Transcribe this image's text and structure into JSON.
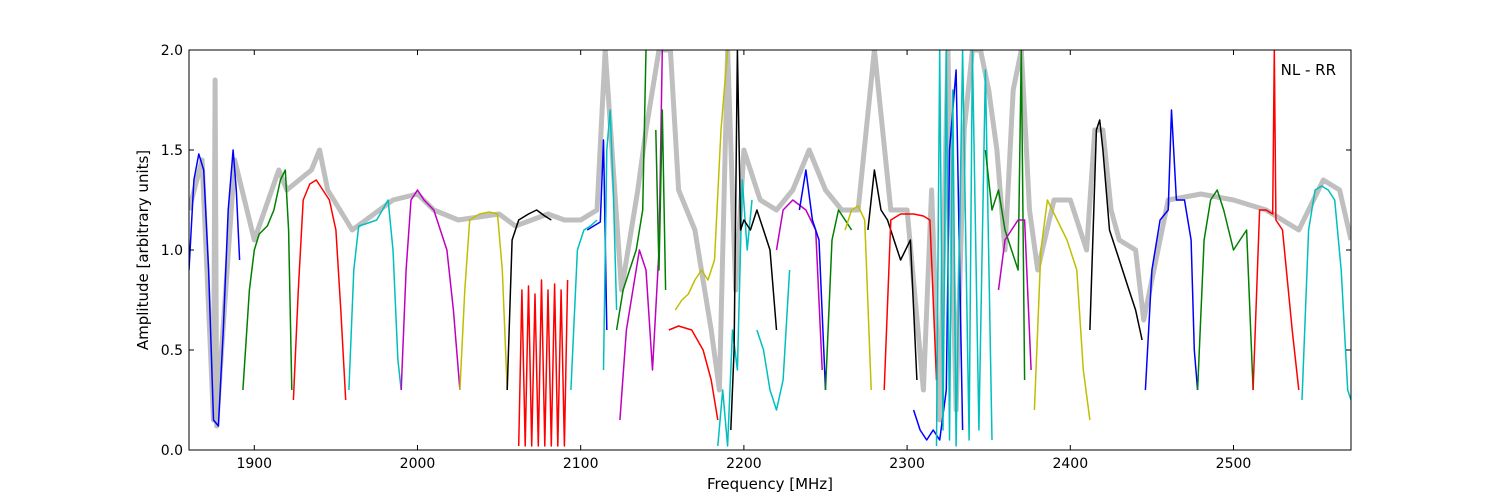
{
  "chart_data": {
    "type": "line",
    "title": "",
    "xlabel": "Frequency [MHz]",
    "ylabel": "Amplitude [arbitrary units]",
    "xlim": [
      1860,
      2572
    ],
    "ylim": [
      0.0,
      2.0
    ],
    "xticks": [
      "1900",
      "2000",
      "2100",
      "2200",
      "2300",
      "2400",
      "2500"
    ],
    "yticks": [
      "0.0",
      "0.5",
      "1.0",
      "1.5",
      "2.0"
    ],
    "annotation": "NL - RR",
    "grid": false,
    "legend": "none",
    "background_series": {
      "color": "#bfbfbf",
      "x": [
        1860,
        1868,
        1875,
        1876,
        1877,
        1880,
        1888,
        1900,
        1915,
        1920,
        1935,
        1940,
        1945,
        1960,
        1985,
        2000,
        2010,
        2025,
        2050,
        2060,
        2070,
        2080,
        2090,
        2100,
        2110,
        2115,
        2125,
        2135,
        2140,
        2148,
        2155,
        2160,
        2170,
        2180,
        2185,
        2190,
        2195,
        2200,
        2210,
        2220,
        2230,
        2240,
        2250,
        2260,
        2270,
        2280,
        2290,
        2300,
        2310,
        2315,
        2320,
        2325,
        2330,
        2335,
        2340,
        2345,
        2350,
        2355,
        2360,
        2365,
        2370,
        2375,
        2380,
        2390,
        2400,
        2410,
        2415,
        2420,
        2425,
        2430,
        2440,
        2445,
        2460,
        2480,
        2500,
        2520,
        2540,
        2555,
        2565,
        2572
      ],
      "y": [
        1.2,
        1.45,
        0.15,
        1.85,
        0.12,
        0.5,
        1.45,
        1.05,
        1.4,
        1.3,
        1.4,
        1.5,
        1.3,
        1.1,
        1.25,
        1.28,
        1.2,
        1.15,
        1.18,
        1.12,
        1.15,
        1.18,
        1.15,
        1.15,
        1.2,
        2.0,
        0.8,
        1.3,
        1.6,
        2.0,
        2.0,
        1.3,
        1.1,
        0.6,
        0.3,
        2.0,
        0.8,
        1.5,
        1.25,
        1.2,
        1.3,
        1.5,
        1.3,
        1.2,
        1.2,
        2.0,
        1.2,
        1.2,
        0.3,
        1.3,
        0.15,
        2.0,
        0.2,
        1.6,
        2.0,
        2.0,
        1.8,
        1.5,
        1.0,
        1.8,
        2.0,
        1.2,
        0.9,
        1.25,
        1.25,
        1.0,
        1.6,
        1.6,
        1.2,
        1.05,
        1.0,
        0.65,
        1.25,
        1.28,
        1.25,
        1.2,
        1.1,
        1.35,
        1.3,
        1.05
      ]
    },
    "series": [
      {
        "color": "#0000ff",
        "x": [
          1860,
          1863,
          1866,
          1869,
          1872,
          1875,
          1878,
          1881,
          1884,
          1887,
          1889,
          1891
        ],
        "y": [
          0.9,
          1.35,
          1.48,
          1.4,
          0.9,
          0.15,
          0.12,
          0.6,
          1.2,
          1.5,
          1.3,
          0.95
        ]
      },
      {
        "color": "#008000",
        "x": [
          1893,
          1897,
          1900,
          1903,
          1908,
          1912,
          1916,
          1919,
          1921,
          1923
        ],
        "y": [
          0.3,
          0.8,
          1.0,
          1.08,
          1.12,
          1.2,
          1.35,
          1.4,
          1.1,
          0.3
        ]
      },
      {
        "color": "#ff0000",
        "x": [
          1924,
          1927,
          1930,
          1934,
          1938,
          1942,
          1946,
          1950,
          1953,
          1956
        ],
        "y": [
          0.25,
          0.8,
          1.25,
          1.33,
          1.35,
          1.3,
          1.25,
          1.1,
          0.7,
          0.25
        ]
      },
      {
        "color": "#00bfbf",
        "x": [
          1958,
          1961,
          1964,
          1968,
          1975,
          1982,
          1985,
          1988,
          1990
        ],
        "y": [
          0.3,
          0.9,
          1.12,
          1.13,
          1.15,
          1.25,
          1.0,
          0.45,
          0.3
        ]
      },
      {
        "color": "#bf00bf",
        "x": [
          1990,
          1993,
          1996,
          2000,
          2004,
          2010,
          2018,
          2022,
          2026
        ],
        "y": [
          0.3,
          0.9,
          1.25,
          1.3,
          1.25,
          1.2,
          1.0,
          0.7,
          0.3
        ]
      },
      {
        "color": "#bfbf00",
        "x": [
          2026,
          2029,
          2032,
          2038,
          2044,
          2049,
          2052,
          2055
        ],
        "y": [
          0.3,
          0.8,
          1.15,
          1.18,
          1.19,
          1.18,
          0.9,
          0.3
        ]
      },
      {
        "color": "#000000",
        "x": [
          2055,
          2058,
          2062,
          2068,
          2073,
          2078,
          2082
        ],
        "y": [
          0.3,
          1.05,
          1.15,
          1.18,
          1.2,
          1.17,
          1.15
        ]
      },
      {
        "color": "#ff0000",
        "x": [
          2062,
          2064,
          2066,
          2068,
          2070,
          2072,
          2074,
          2076,
          2078,
          2080,
          2082,
          2084,
          2086,
          2088,
          2090,
          2092
        ],
        "y": [
          0.02,
          0.8,
          0.02,
          0.82,
          0.02,
          0.78,
          0.02,
          0.85,
          0.02,
          0.8,
          0.02,
          0.83,
          0.02,
          0.8,
          0.02,
          0.85
        ]
      },
      {
        "color": "#00bfbf",
        "x": [
          2094,
          2098,
          2102,
          2106,
          2110
        ],
        "y": [
          0.3,
          1.0,
          1.1,
          1.12,
          1.15
        ]
      },
      {
        "color": "#0000ff",
        "x": [
          2104,
          2108,
          2112,
          2114,
          2116
        ],
        "y": [
          1.1,
          1.12,
          1.14,
          1.55,
          0.6
        ]
      },
      {
        "color": "#00bfbf",
        "x": [
          2114,
          2116,
          2118,
          2120,
          2122
        ],
        "y": [
          0.4,
          1.5,
          1.7,
          1.3,
          0.7
        ]
      },
      {
        "color": "#008000",
        "x": [
          2122,
          2126,
          2130,
          2134,
          2138,
          2140
        ],
        "y": [
          0.6,
          0.8,
          0.9,
          1.0,
          1.2,
          2.0
        ]
      },
      {
        "color": "#bf00bf",
        "x": [
          2124,
          2128,
          2132,
          2136,
          2140,
          2144,
          2148,
          2150
        ],
        "y": [
          0.15,
          0.6,
          0.8,
          1.0,
          0.9,
          0.4,
          1.0,
          2.0
        ]
      },
      {
        "color": "#008000",
        "x": [
          2146,
          2148,
          2150,
          2152
        ],
        "y": [
          1.6,
          0.9,
          1.7,
          0.8
        ]
      },
      {
        "color": "#ff0000",
        "x": [
          2154,
          2160,
          2168,
          2175,
          2180,
          2184
        ],
        "y": [
          0.6,
          0.62,
          0.6,
          0.5,
          0.35,
          0.15
        ]
      },
      {
        "color": "#bfbf00",
        "x": [
          2158,
          2162,
          2166,
          2170,
          2174,
          2178,
          2182,
          2186,
          2190
        ],
        "y": [
          0.7,
          0.75,
          0.78,
          0.85,
          0.9,
          0.85,
          0.95,
          1.6,
          2.0
        ]
      },
      {
        "color": "#00bfbf",
        "x": [
          2184,
          2187,
          2190,
          2193,
          2196,
          2199,
          2202,
          2205
        ],
        "y": [
          0.02,
          0.3,
          0.02,
          0.6,
          0.4,
          1.35,
          1.0,
          1.25
        ]
      },
      {
        "color": "#000000",
        "x": [
          2192,
          2194,
          2196,
          2198,
          2200,
          2204,
          2208,
          2212,
          2216,
          2220
        ],
        "y": [
          0.1,
          0.5,
          2.0,
          1.1,
          1.15,
          1.1,
          1.2,
          1.1,
          1.0,
          0.6
        ]
      },
      {
        "color": "#00bfbf",
        "x": [
          2208,
          2212,
          2216,
          2220,
          2224,
          2228
        ],
        "y": [
          0.6,
          0.5,
          0.3,
          0.2,
          0.35,
          0.9
        ]
      },
      {
        "color": "#bf00bf",
        "x": [
          2220,
          2224,
          2230,
          2238,
          2244,
          2248
        ],
        "y": [
          1.0,
          1.2,
          1.25,
          1.2,
          1.1,
          0.4
        ]
      },
      {
        "color": "#0000ff",
        "x": [
          2234,
          2238,
          2242,
          2246,
          2250
        ],
        "y": [
          1.2,
          1.4,
          1.15,
          1.05,
          0.3
        ]
      },
      {
        "color": "#008000",
        "x": [
          2250,
          2254,
          2258,
          2262,
          2266
        ],
        "y": [
          0.3,
          1.05,
          1.2,
          1.15,
          1.1
        ]
      },
      {
        "color": "#bfbf00",
        "x": [
          2262,
          2266,
          2270,
          2274,
          2278
        ],
        "y": [
          1.1,
          1.2,
          1.22,
          1.15,
          0.3
        ]
      },
      {
        "color": "#000000",
        "x": [
          2276,
          2280,
          2284,
          2288,
          2292,
          2296,
          2302,
          2306
        ],
        "y": [
          1.1,
          1.4,
          1.2,
          1.15,
          1.05,
          0.95,
          1.05,
          0.35
        ]
      },
      {
        "color": "#ff0000",
        "x": [
          2286,
          2290,
          2296,
          2304,
          2310,
          2314,
          2318
        ],
        "y": [
          0.3,
          1.15,
          1.18,
          1.18,
          1.17,
          1.15,
          0.35
        ]
      },
      {
        "color": "#0000ff",
        "x": [
          2304,
          2308,
          2312,
          2316,
          2320,
          2324,
          2326,
          2330,
          2334
        ],
        "y": [
          0.2,
          0.1,
          0.05,
          0.1,
          0.05,
          0.3,
          1.5,
          1.9,
          0.1
        ]
      },
      {
        "color": "#00bfbf",
        "x": [
          2318,
          2320,
          2322,
          2324,
          2326,
          2328,
          2330,
          2334,
          2338,
          2340,
          2344,
          2348,
          2352
        ],
        "y": [
          0.02,
          2.0,
          0.1,
          2.0,
          0.05,
          1.8,
          0.02,
          2.0,
          0.05,
          2.0,
          0.1,
          1.9,
          0.05
        ]
      },
      {
        "color": "#008000",
        "x": [
          2348,
          2352,
          2356,
          2360,
          2364,
          2368,
          2370,
          2372
        ],
        "y": [
          1.5,
          1.2,
          1.3,
          1.1,
          1.0,
          0.9,
          2.0,
          0.35
        ]
      },
      {
        "color": "#bf00bf",
        "x": [
          2356,
          2360,
          2364,
          2368,
          2372,
          2376
        ],
        "y": [
          0.8,
          1.05,
          1.1,
          1.15,
          1.15,
          0.4
        ]
      },
      {
        "color": "#bfbf00",
        "x": [
          2378,
          2382,
          2386,
          2392,
          2398,
          2404,
          2408,
          2412
        ],
        "y": [
          0.2,
          1.0,
          1.25,
          1.15,
          1.05,
          0.9,
          0.4,
          0.15
        ]
      },
      {
        "color": "#000000",
        "x": [
          2412,
          2416,
          2418,
          2420,
          2424,
          2430,
          2436,
          2440,
          2444
        ],
        "y": [
          0.6,
          1.6,
          1.65,
          1.5,
          1.1,
          0.95,
          0.8,
          0.7,
          0.55
        ]
      },
      {
        "color": "#0000ff",
        "x": [
          2446,
          2450,
          2455,
          2460,
          2462,
          2465,
          2470,
          2474,
          2476,
          2478
        ],
        "y": [
          0.3,
          0.9,
          1.15,
          1.2,
          1.7,
          1.25,
          1.25,
          1.05,
          0.5,
          0.3
        ]
      },
      {
        "color": "#008000",
        "x": [
          2478,
          2482,
          2486,
          2490,
          2494,
          2500,
          2504,
          2508,
          2512
        ],
        "y": [
          0.3,
          1.05,
          1.25,
          1.3,
          1.2,
          1.0,
          1.05,
          1.1,
          0.3
        ]
      },
      {
        "color": "#ff0000",
        "x": [
          2512,
          2516,
          2520,
          2524,
          2525,
          2526,
          2530,
          2536,
          2540
        ],
        "y": [
          0.3,
          1.2,
          1.2,
          1.18,
          2.0,
          1.15,
          1.1,
          0.6,
          0.3
        ]
      },
      {
        "color": "#00bfbf",
        "x": [
          2542,
          2546,
          2550,
          2554,
          2558,
          2562,
          2566,
          2570,
          2572
        ],
        "y": [
          0.25,
          1.1,
          1.3,
          1.32,
          1.3,
          1.25,
          0.9,
          0.3,
          0.25
        ]
      }
    ]
  }
}
